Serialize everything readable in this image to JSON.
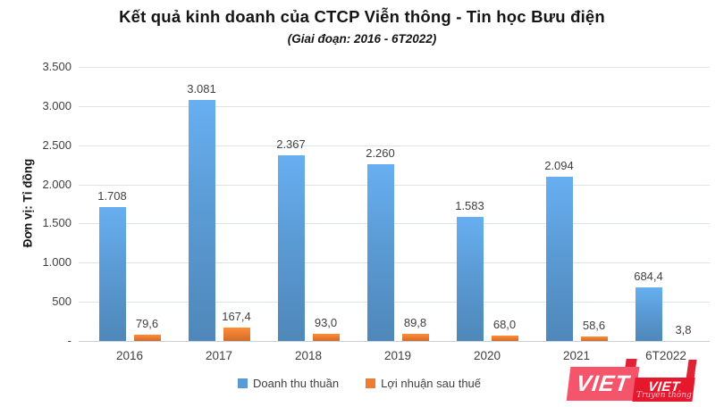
{
  "header": {
    "title": "Kết quả kinh doanh của CTCP Viễn thông - Tin học Bưu điện",
    "subtitle": "(Giai đoạn: 2016 - 6T2022)"
  },
  "chart_data": {
    "type": "bar",
    "title": "Kết quả kinh doanh của CTCP Viễn thông - Tin học Bưu điện",
    "subtitle": "(Giai đoạn: 2016 - 6T2022)",
    "ylabel": "Đơn vị: Tỉ đồng",
    "xlabel": "",
    "categories": [
      "2016",
      "2017",
      "2018",
      "2019",
      "2020",
      "2021",
      "6T2022"
    ],
    "series": [
      {
        "name": "Doanh thu thuần",
        "color": "#5B9BD5",
        "values": [
          1708,
          3081,
          2367,
          2260,
          1583,
          2094,
          684.4
        ],
        "labels": [
          "1.708",
          "3.081",
          "2.367",
          "2.260",
          "1.583",
          "2.094",
          "684,4"
        ]
      },
      {
        "name": "Lợi nhuận sau thuế",
        "color": "#ED7D31",
        "values": [
          79.6,
          167.4,
          93.0,
          89.8,
          68.0,
          58.6,
          3.8
        ],
        "labels": [
          "79,6",
          "167,4",
          "93,0",
          "89,8",
          "68,0",
          "58,6",
          "3,8"
        ]
      }
    ],
    "ylim": [
      0,
      3500
    ],
    "yticks": [
      0,
      500,
      1000,
      1500,
      2000,
      2500,
      3000,
      3500
    ],
    "ytick_labels": [
      "-",
      "500",
      "1.000",
      "1.500",
      "2.000",
      "2.500",
      "3.000",
      "3.500"
    ],
    "grid": true,
    "legend_position": "bottom"
  },
  "colors": {
    "revenue_bar": "#5B9BD5",
    "profit_bar": "#ED7D31",
    "gridline": "#DDE3EC",
    "text": "#404040",
    "title_text": "#151515",
    "watermark_pink": "#F4556A",
    "watermark_red": "#E6182D"
  },
  "watermark": {
    "big_text": "VIET",
    "small_text": "VIET",
    "script_text": "Truyền thông"
  }
}
